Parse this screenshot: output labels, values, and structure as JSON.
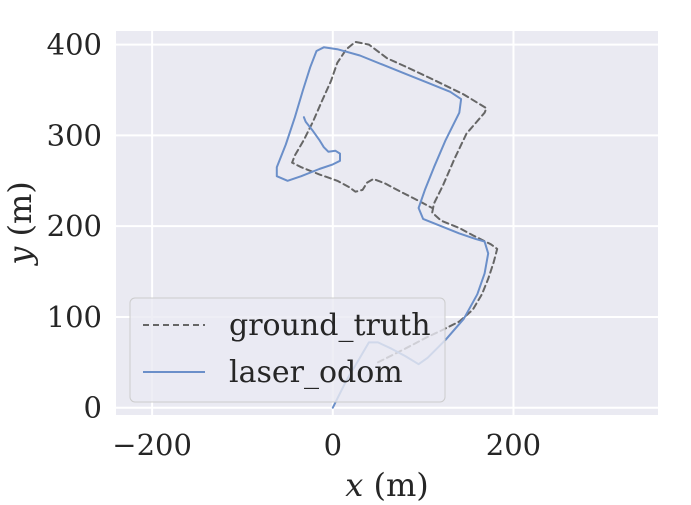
{
  "chart_data": {
    "type": "line",
    "title": "",
    "xlabel_var": "x",
    "xlabel_unit": " (m)",
    "ylabel_var": "y",
    "ylabel_unit": " (m)",
    "xlim": [
      -240,
      360
    ],
    "ylim": [
      -8,
      415
    ],
    "xticks": [
      -200,
      0,
      200
    ],
    "yticks": [
      0,
      100,
      200,
      300,
      400
    ],
    "grid": true,
    "legend_position": "lower-left",
    "background": "#eaeaf2",
    "series": [
      {
        "name": "ground_truth",
        "style": "dashed",
        "color": "#666666",
        "points": [
          [
            50,
            50
          ],
          [
            80,
            65
          ],
          [
            105,
            78
          ],
          [
            120,
            85
          ],
          [
            140,
            95
          ],
          [
            155,
            108
          ],
          [
            165,
            125
          ],
          [
            172,
            142
          ],
          [
            178,
            160
          ],
          [
            182,
            175
          ],
          [
            175,
            180
          ],
          [
            155,
            190
          ],
          [
            140,
            198
          ],
          [
            120,
            206
          ],
          [
            110,
            215
          ],
          [
            112,
            225
          ],
          [
            122,
            245
          ],
          [
            135,
            275
          ],
          [
            148,
            302
          ],
          [
            168,
            325
          ],
          [
            170,
            330
          ],
          [
            145,
            345
          ],
          [
            110,
            362
          ],
          [
            80,
            376
          ],
          [
            60,
            385
          ],
          [
            40,
            400
          ],
          [
            25,
            403
          ],
          [
            15,
            395
          ],
          [
            5,
            380
          ],
          [
            -2,
            360
          ],
          [
            -12,
            338
          ],
          [
            -22,
            315
          ],
          [
            -32,
            295
          ],
          [
            -42,
            278
          ],
          [
            -45,
            270
          ],
          [
            -35,
            265
          ],
          [
            -15,
            257
          ],
          [
            5,
            250
          ],
          [
            18,
            243
          ],
          [
            25,
            238
          ],
          [
            33,
            240
          ],
          [
            38,
            248
          ],
          [
            45,
            252
          ],
          [
            58,
            247
          ],
          [
            75,
            238
          ],
          [
            95,
            228
          ],
          [
            110,
            220
          ]
        ]
      },
      {
        "name": "laser_odom",
        "style": "solid",
        "color": "#6b8fc9",
        "points": [
          [
            0,
            0
          ],
          [
            15,
            30
          ],
          [
            30,
            55
          ],
          [
            40,
            72
          ],
          [
            50,
            72
          ],
          [
            65,
            65
          ],
          [
            80,
            57
          ],
          [
            95,
            48
          ],
          [
            105,
            55
          ],
          [
            125,
            75
          ],
          [
            145,
            98
          ],
          [
            160,
            125
          ],
          [
            168,
            148
          ],
          [
            172,
            170
          ],
          [
            168,
            183
          ],
          [
            158,
            186
          ],
          [
            140,
            192
          ],
          [
            120,
            200
          ],
          [
            100,
            208
          ],
          [
            95,
            220
          ],
          [
            102,
            240
          ],
          [
            112,
            265
          ],
          [
            125,
            295
          ],
          [
            140,
            325
          ],
          [
            142,
            340
          ],
          [
            130,
            348
          ],
          [
            105,
            358
          ],
          [
            80,
            368
          ],
          [
            55,
            378
          ],
          [
            30,
            388
          ],
          [
            5,
            395
          ],
          [
            -10,
            397
          ],
          [
            -18,
            393
          ],
          [
            -25,
            375
          ],
          [
            -33,
            350
          ],
          [
            -42,
            320
          ],
          [
            -52,
            290
          ],
          [
            -62,
            265
          ],
          [
            -62,
            255
          ],
          [
            -50,
            250
          ],
          [
            -35,
            255
          ],
          [
            -15,
            263
          ],
          [
            0,
            268
          ],
          [
            8,
            272
          ],
          [
            8,
            280
          ],
          [
            3,
            283
          ],
          [
            -5,
            282
          ],
          [
            -10,
            287
          ],
          [
            -15,
            295
          ],
          [
            -22,
            305
          ],
          [
            -30,
            315
          ],
          [
            -32,
            320
          ]
        ]
      }
    ]
  }
}
